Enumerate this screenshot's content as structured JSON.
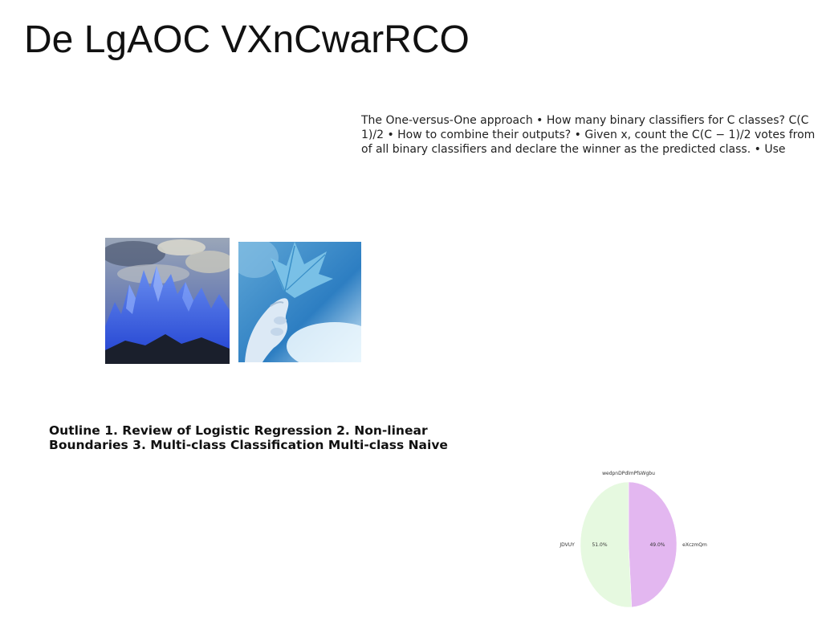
{
  "slide": {
    "title": "De LgAOC VXnCwarRCO",
    "paragraph_lines": [
      "The One-versus-One approach • How many binary classifiers for C classes? C(C",
      "1)/2 • How to combine their outputs? • Given x, count the C(C − 1)/2 votes from",
      "of all binary classifiers and declare the winner as the predicted class. • Use"
    ],
    "outline_lines": [
      "Outline 1. Review of Logistic Regression 2. Non-linear",
      "Boundaries 3. Multi-class Classification Multi-class Naive"
    ]
  },
  "images": {
    "mountains_icon": "mountain-photo",
    "leaf_icon": "leaf-photo"
  },
  "chart_data": {
    "type": "pie",
    "title": "wedpnDPdlmPfsWgbu",
    "slices": [
      {
        "label": "eXczmQm",
        "value": 49.0,
        "value_label": "49.0%",
        "color": "#e3b7f0"
      },
      {
        "label": "JDVUY",
        "value": 51.0,
        "value_label": "51.0%",
        "color": "#e6f9e0"
      }
    ],
    "start_angle_deg": 90,
    "direction": "clockwise"
  }
}
